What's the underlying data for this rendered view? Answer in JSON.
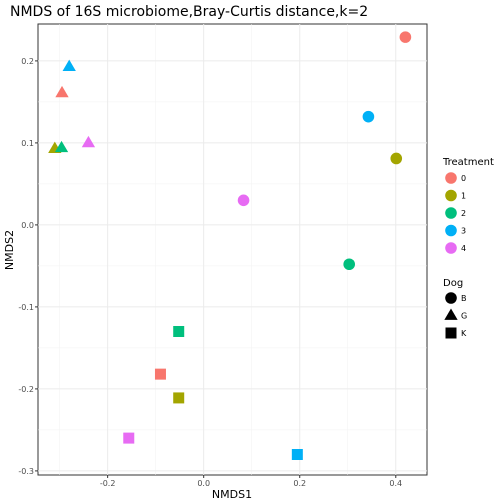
{
  "chart_data": {
    "type": "scatter",
    "title": "NMDS of 16S microbiome,Bray-Curtis distance,k=2",
    "xlabel": "NMDS1",
    "ylabel": "NMDS2",
    "xlim": [
      -0.345,
      0.465
    ],
    "ylim": [
      -0.305,
      0.245
    ],
    "xticks": [
      -0.2,
      0.0,
      0.2,
      0.4
    ],
    "xtick_labels": [
      "-0.2",
      "0.0",
      "0.2",
      "0.4"
    ],
    "yticks": [
      -0.3,
      -0.2,
      -0.1,
      0.0,
      0.1,
      0.2
    ],
    "ytick_labels": [
      "-0.3",
      "-0.2",
      "-0.1",
      "0.0",
      "0.1",
      "0.2"
    ],
    "grid": true,
    "legend_placement": "right",
    "colors": {
      "0": "#F8766D",
      "1": "#A3A500",
      "2": "#00BF7D",
      "3": "#00B0F6",
      "4": "#E76BF3"
    },
    "legends": [
      {
        "title": "Treatment",
        "aesthetic": "color",
        "entries": [
          {
            "label": "0",
            "key": "0"
          },
          {
            "label": "1",
            "key": "1"
          },
          {
            "label": "2",
            "key": "2"
          },
          {
            "label": "3",
            "key": "3"
          },
          {
            "label": "4",
            "key": "4"
          }
        ]
      },
      {
        "title": "Dog",
        "aesthetic": "shape",
        "entries": [
          {
            "label": "B",
            "shape": "circle"
          },
          {
            "label": "G",
            "shape": "triangle"
          },
          {
            "label": "K",
            "shape": "square"
          }
        ]
      }
    ],
    "points": [
      {
        "x": 0.42,
        "y": 0.229,
        "treatment": "0",
        "dog": "B"
      },
      {
        "x": 0.401,
        "y": 0.081,
        "treatment": "1",
        "dog": "B"
      },
      {
        "x": 0.303,
        "y": -0.048,
        "treatment": "2",
        "dog": "B"
      },
      {
        "x": 0.343,
        "y": 0.132,
        "treatment": "3",
        "dog": "B"
      },
      {
        "x": 0.083,
        "y": 0.03,
        "treatment": "4",
        "dog": "B"
      },
      {
        "x": -0.295,
        "y": 0.161,
        "treatment": "0",
        "dog": "G"
      },
      {
        "x": -0.31,
        "y": 0.093,
        "treatment": "1",
        "dog": "G"
      },
      {
        "x": -0.296,
        "y": 0.094,
        "treatment": "2",
        "dog": "G"
      },
      {
        "x": -0.28,
        "y": 0.193,
        "treatment": "3",
        "dog": "G"
      },
      {
        "x": -0.24,
        "y": 0.1,
        "treatment": "4",
        "dog": "G"
      },
      {
        "x": -0.09,
        "y": -0.182,
        "treatment": "0",
        "dog": "K"
      },
      {
        "x": -0.052,
        "y": -0.211,
        "treatment": "1",
        "dog": "K"
      },
      {
        "x": -0.052,
        "y": -0.13,
        "treatment": "2",
        "dog": "K"
      },
      {
        "x": 0.195,
        "y": -0.28,
        "treatment": "3",
        "dog": "K"
      },
      {
        "x": -0.156,
        "y": -0.26,
        "treatment": "4",
        "dog": "K"
      }
    ]
  }
}
